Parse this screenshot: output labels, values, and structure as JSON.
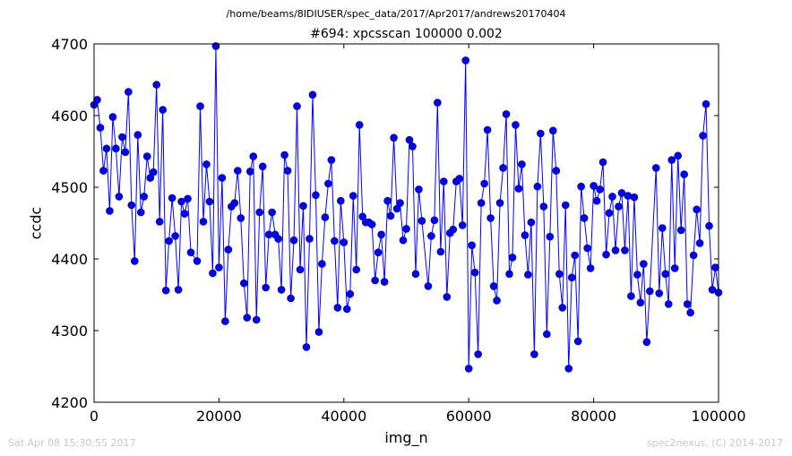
{
  "header": {
    "suptitle": "/home/beams/8IDIUSER/spec_data/2017/Apr2017/andrews20170404"
  },
  "footer": {
    "timestamp": "Sat Apr 08 15:30:55 2017",
    "credit": "spec2nexus, (C) 2014-2017"
  },
  "colors": {
    "series": "#0000ff",
    "marker_edge": "#000080",
    "footer_text": "#c8c8c8"
  },
  "chart_data": {
    "type": "line",
    "title": "#694: xpcsscan 100000 0.002",
    "xlabel": "img_n",
    "ylabel": "ccdc",
    "xlim": [
      0,
      100000
    ],
    "ylim": [
      4200,
      4700
    ],
    "xticks": [
      0,
      20000,
      40000,
      60000,
      80000,
      100000
    ],
    "yticks": [
      4200,
      4300,
      4400,
      4500,
      4600,
      4700
    ],
    "grid": false,
    "markers": "circle",
    "series": [
      {
        "values": [
          [
            0,
            4615
          ],
          [
            500,
            4622
          ],
          [
            1000,
            4583
          ],
          [
            1500,
            4523
          ],
          [
            2000,
            4554
          ],
          [
            2500,
            4467
          ],
          [
            3000,
            4598
          ],
          [
            3500,
            4554
          ],
          [
            4000,
            4487
          ],
          [
            4500,
            4570
          ],
          [
            5000,
            4549
          ],
          [
            5500,
            4633
          ],
          [
            6000,
            4475
          ],
          [
            6500,
            4397
          ],
          [
            7000,
            4573
          ],
          [
            7500,
            4465
          ],
          [
            8000,
            4487
          ],
          [
            8500,
            4543
          ],
          [
            9000,
            4513
          ],
          [
            9500,
            4521
          ],
          [
            10000,
            4643
          ],
          [
            10500,
            4452
          ],
          [
            11000,
            4608
          ],
          [
            11500,
            4356
          ],
          [
            12000,
            4425
          ],
          [
            12500,
            4485
          ],
          [
            13000,
            4432
          ],
          [
            13500,
            4357
          ],
          [
            14000,
            4480
          ],
          [
            14500,
            4463
          ],
          [
            15000,
            4484
          ],
          [
            15500,
            4409
          ],
          [
            16500,
            4397
          ],
          [
            17000,
            4613
          ],
          [
            17500,
            4452
          ],
          [
            18000,
            4532
          ],
          [
            18500,
            4480
          ],
          [
            19000,
            4380
          ],
          [
            19500,
            4697
          ],
          [
            20000,
            4388
          ],
          [
            20500,
            4513
          ],
          [
            21000,
            4313
          ],
          [
            21500,
            4413
          ],
          [
            22000,
            4473
          ],
          [
            22500,
            4478
          ],
          [
            23000,
            4523
          ],
          [
            23500,
            4457
          ],
          [
            24000,
            4366
          ],
          [
            24500,
            4318
          ],
          [
            25000,
            4522
          ],
          [
            25500,
            4543
          ],
          [
            26000,
            4315
          ],
          [
            26500,
            4465
          ],
          [
            27000,
            4529
          ],
          [
            27500,
            4360
          ],
          [
            28000,
            4434
          ],
          [
            28500,
            4465
          ],
          [
            29000,
            4434
          ],
          [
            29500,
            4428
          ],
          [
            30000,
            4357
          ],
          [
            30500,
            4545
          ],
          [
            31000,
            4523
          ],
          [
            31500,
            4345
          ],
          [
            32000,
            4426
          ],
          [
            32500,
            4613
          ],
          [
            33000,
            4385
          ],
          [
            33500,
            4474
          ],
          [
            34000,
            4277
          ],
          [
            34500,
            4428
          ],
          [
            35000,
            4629
          ],
          [
            35500,
            4489
          ],
          [
            36000,
            4298
          ],
          [
            36500,
            4393
          ],
          [
            37000,
            4458
          ],
          [
            37500,
            4505
          ],
          [
            38000,
            4538
          ],
          [
            38500,
            4425
          ],
          [
            39000,
            4332
          ],
          [
            39500,
            4481
          ],
          [
            40000,
            4423
          ],
          [
            40500,
            4330
          ],
          [
            41000,
            4351
          ],
          [
            41500,
            4488
          ],
          [
            42000,
            4385
          ],
          [
            42500,
            4587
          ],
          [
            43000,
            4459
          ],
          [
            43500,
            4451
          ],
          [
            44000,
            4451
          ],
          [
            44500,
            4448
          ],
          [
            45000,
            4370
          ],
          [
            45500,
            4409
          ],
          [
            46000,
            4434
          ],
          [
            46500,
            4368
          ],
          [
            47000,
            4481
          ],
          [
            47500,
            4460
          ],
          [
            48000,
            4569
          ],
          [
            48500,
            4470
          ],
          [
            49000,
            4478
          ],
          [
            49500,
            4426
          ],
          [
            50000,
            4442
          ],
          [
            50500,
            4566
          ],
          [
            51000,
            4557
          ],
          [
            51500,
            4379
          ],
          [
            52000,
            4497
          ],
          [
            52500,
            4453
          ],
          [
            53500,
            4362
          ],
          [
            54000,
            4432
          ],
          [
            54500,
            4454
          ],
          [
            55000,
            4618
          ],
          [
            55500,
            4410
          ],
          [
            56000,
            4508
          ],
          [
            56500,
            4347
          ],
          [
            57000,
            4436
          ],
          [
            57500,
            4441
          ],
          [
            58000,
            4508
          ],
          [
            58500,
            4512
          ],
          [
            59000,
            4447
          ],
          [
            59500,
            4677
          ],
          [
            60000,
            4247
          ],
          [
            60500,
            4419
          ],
          [
            61000,
            4381
          ],
          [
            61500,
            4267
          ],
          [
            62000,
            4478
          ],
          [
            62500,
            4505
          ],
          [
            63000,
            4580
          ],
          [
            63500,
            4457
          ],
          [
            64000,
            4362
          ],
          [
            64500,
            4342
          ],
          [
            65000,
            4478
          ],
          [
            65500,
            4527
          ],
          [
            66000,
            4602
          ],
          [
            66500,
            4379
          ],
          [
            67000,
            4402
          ],
          [
            67500,
            4587
          ],
          [
            68000,
            4498
          ],
          [
            68500,
            4532
          ],
          [
            69000,
            4433
          ],
          [
            69500,
            4378
          ],
          [
            70000,
            4451
          ],
          [
            70500,
            4267
          ],
          [
            71000,
            4501
          ],
          [
            71500,
            4575
          ],
          [
            72000,
            4473
          ],
          [
            72500,
            4295
          ],
          [
            73000,
            4431
          ],
          [
            73500,
            4579
          ],
          [
            74000,
            4523
          ],
          [
            74500,
            4379
          ],
          [
            75000,
            4332
          ],
          [
            75500,
            4475
          ],
          [
            76000,
            4247
          ],
          [
            76500,
            4374
          ],
          [
            77000,
            4405
          ],
          [
            77500,
            4285
          ],
          [
            78000,
            4501
          ],
          [
            78500,
            4457
          ],
          [
            79000,
            4415
          ],
          [
            79500,
            4387
          ],
          [
            80000,
            4502
          ],
          [
            80500,
            4481
          ],
          [
            81000,
            4497
          ],
          [
            81500,
            4535
          ],
          [
            82000,
            4406
          ],
          [
            82500,
            4464
          ],
          [
            83000,
            4487
          ],
          [
            83500,
            4412
          ],
          [
            84000,
            4473
          ],
          [
            84500,
            4492
          ],
          [
            85000,
            4412
          ],
          [
            85500,
            4488
          ],
          [
            86000,
            4348
          ],
          [
            86500,
            4486
          ],
          [
            87000,
            4378
          ],
          [
            87500,
            4339
          ],
          [
            88000,
            4393
          ],
          [
            88500,
            4284
          ],
          [
            89000,
            4355
          ],
          [
            90000,
            4527
          ],
          [
            90500,
            4352
          ],
          [
            91000,
            4443
          ],
          [
            91500,
            4379
          ],
          [
            92000,
            4337
          ],
          [
            92500,
            4538
          ],
          [
            93000,
            4387
          ],
          [
            93500,
            4544
          ],
          [
            94000,
            4440
          ],
          [
            94500,
            4518
          ],
          [
            95000,
            4337
          ],
          [
            95500,
            4325
          ],
          [
            96000,
            4405
          ],
          [
            96500,
            4469
          ],
          [
            97000,
            4422
          ],
          [
            97500,
            4572
          ],
          [
            98000,
            4616
          ],
          [
            98500,
            4446
          ],
          [
            99000,
            4357
          ],
          [
            99500,
            4388
          ],
          [
            100000,
            4353
          ]
        ]
      }
    ]
  }
}
